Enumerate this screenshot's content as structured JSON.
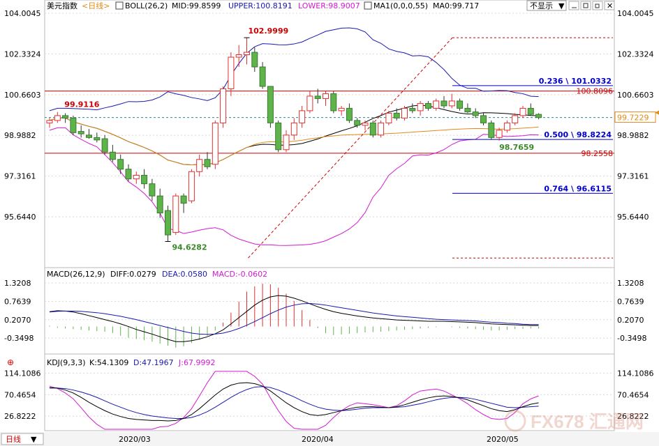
{
  "header": {
    "symbol": "美元指数",
    "period": "<日线>",
    "boll": "BOLL(26,2)",
    "mid": "MID:99.8599",
    "upper": "UPPER:100.8191",
    "lower": "LOWER:98.9007",
    "ma1": "MA1(0,0,0,55)",
    "ma0": "MA0:99.717",
    "hide_label": "不显示"
  },
  "macd_header": {
    "name": "MACD(26,12,9)",
    "diff": "DIFF:0.0279",
    "dea": "DEA:0.0580",
    "macd": "MACD:-0.0602"
  },
  "kdj_header": {
    "name": "KDJ(9,3,3)",
    "k": "K:54.1309",
    "d": "D:47.1967",
    "j": "J:67.9992"
  },
  "footer": {
    "period_tab": "日线",
    "dates": [
      "2020/03",
      "2020/04",
      "2020/05"
    ]
  },
  "watermark": "FX678 汇通网",
  "colors": {
    "up": "#e03030",
    "down": "#5fb34b",
    "upper": "#1818b0",
    "lower": "#d31ad3",
    "ma": "#e08a1a",
    "mid": "#000000",
    "level": "#cc0000",
    "fib": "#0000cc"
  },
  "chart_data": [
    {
      "type": "candlestick",
      "title": "美元指数 日线",
      "y_ticks": [
        "104.0045",
        "102.3324",
        "100.6603",
        "98.9882",
        "97.3161",
        "95.6440"
      ],
      "ylim": [
        93.9,
        104.0045
      ],
      "current_price": "99.7229",
      "annotations": {
        "high": "102.9999",
        "low": "94.6282",
        "start": "99.9116",
        "recent_low": "98.7659"
      },
      "levels": [
        {
          "label": "100.8096",
          "value": 100.81
        },
        {
          "label": "98.2558",
          "value": 98.2558
        }
      ],
      "fib_levels": [
        {
          "label": "0.236 \\ 101.0332",
          "value": 101.03
        },
        {
          "label": "0.500 \\ 98.8224",
          "value": 98.82
        },
        {
          "label": "0.764 \\ 96.6115",
          "value": 96.61
        }
      ],
      "candles": [
        {
          "o": 99.5,
          "h": 99.7,
          "l": 99.3,
          "c": 99.6
        },
        {
          "o": 99.6,
          "h": 99.95,
          "l": 99.5,
          "c": 99.8
        },
        {
          "o": 99.8,
          "h": 99.9,
          "l": 99.5,
          "c": 99.7
        },
        {
          "o": 99.7,
          "h": 99.8,
          "l": 99.0,
          "c": 99.1
        },
        {
          "o": 99.15,
          "h": 99.4,
          "l": 98.9,
          "c": 99.05
        },
        {
          "o": 99.0,
          "h": 99.25,
          "l": 98.85,
          "c": 98.9
        },
        {
          "o": 98.9,
          "h": 99.1,
          "l": 98.7,
          "c": 98.8
        },
        {
          "o": 98.85,
          "h": 99.0,
          "l": 98.2,
          "c": 98.3
        },
        {
          "o": 98.3,
          "h": 98.6,
          "l": 97.9,
          "c": 98.0
        },
        {
          "o": 98.0,
          "h": 98.2,
          "l": 97.4,
          "c": 97.6
        },
        {
          "o": 97.6,
          "h": 97.8,
          "l": 97.1,
          "c": 97.2
        },
        {
          "o": 97.2,
          "h": 97.5,
          "l": 97.0,
          "c": 97.35
        },
        {
          "o": 97.35,
          "h": 97.6,
          "l": 96.8,
          "c": 97.0
        },
        {
          "o": 97.0,
          "h": 97.2,
          "l": 96.3,
          "c": 96.5
        },
        {
          "o": 96.5,
          "h": 96.8,
          "l": 95.6,
          "c": 95.8
        },
        {
          "o": 95.9,
          "h": 96.1,
          "l": 94.63,
          "c": 94.9
        },
        {
          "o": 95.0,
          "h": 96.6,
          "l": 94.9,
          "c": 96.5
        },
        {
          "o": 96.5,
          "h": 96.6,
          "l": 95.8,
          "c": 96.2
        },
        {
          "o": 96.3,
          "h": 97.6,
          "l": 96.2,
          "c": 97.5
        },
        {
          "o": 97.5,
          "h": 98.2,
          "l": 97.3,
          "c": 98.0
        },
        {
          "o": 98.0,
          "h": 98.3,
          "l": 97.6,
          "c": 97.7
        },
        {
          "o": 97.8,
          "h": 99.6,
          "l": 97.6,
          "c": 99.5
        },
        {
          "o": 99.5,
          "h": 101.0,
          "l": 99.3,
          "c": 100.9
        },
        {
          "o": 100.9,
          "h": 102.4,
          "l": 100.6,
          "c": 102.2
        },
        {
          "o": 102.2,
          "h": 102.7,
          "l": 101.8,
          "c": 102.3
        },
        {
          "o": 102.3,
          "h": 103.0,
          "l": 101.9,
          "c": 102.4
        },
        {
          "o": 102.4,
          "h": 102.6,
          "l": 101.6,
          "c": 101.8
        },
        {
          "o": 101.8,
          "h": 102.0,
          "l": 100.9,
          "c": 101.0
        },
        {
          "o": 101.0,
          "h": 101.0,
          "l": 99.3,
          "c": 99.5
        },
        {
          "o": 99.5,
          "h": 99.6,
          "l": 98.3,
          "c": 98.4
        },
        {
          "o": 98.4,
          "h": 99.2,
          "l": 98.3,
          "c": 99.0
        },
        {
          "o": 99.0,
          "h": 99.7,
          "l": 98.8,
          "c": 99.5
        },
        {
          "o": 99.5,
          "h": 100.2,
          "l": 99.3,
          "c": 100.0
        },
        {
          "o": 100.0,
          "h": 100.8,
          "l": 99.9,
          "c": 100.6
        },
        {
          "o": 100.6,
          "h": 100.9,
          "l": 100.3,
          "c": 100.5
        },
        {
          "o": 100.5,
          "h": 100.8,
          "l": 100.2,
          "c": 100.7
        },
        {
          "o": 100.7,
          "h": 100.8,
          "l": 99.9,
          "c": 100.0
        },
        {
          "o": 100.0,
          "h": 100.2,
          "l": 99.8,
          "c": 100.1
        },
        {
          "o": 100.1,
          "h": 100.3,
          "l": 99.5,
          "c": 99.6
        },
        {
          "o": 99.6,
          "h": 99.7,
          "l": 99.3,
          "c": 99.4
        },
        {
          "o": 99.4,
          "h": 99.6,
          "l": 99.2,
          "c": 99.5
        },
        {
          "o": 99.5,
          "h": 99.6,
          "l": 98.9,
          "c": 99.0
        },
        {
          "o": 99.0,
          "h": 99.6,
          "l": 98.9,
          "c": 99.5
        },
        {
          "o": 99.5,
          "h": 100.0,
          "l": 99.4,
          "c": 99.9
        },
        {
          "o": 99.9,
          "h": 100.1,
          "l": 99.6,
          "c": 99.7
        },
        {
          "o": 99.7,
          "h": 100.2,
          "l": 99.6,
          "c": 100.1
        },
        {
          "o": 100.1,
          "h": 100.3,
          "l": 99.9,
          "c": 100.0
        },
        {
          "o": 100.0,
          "h": 100.4,
          "l": 99.8,
          "c": 100.3
        },
        {
          "o": 100.3,
          "h": 100.4,
          "l": 100.0,
          "c": 100.1
        },
        {
          "o": 100.1,
          "h": 100.5,
          "l": 100.0,
          "c": 100.4
        },
        {
          "o": 100.4,
          "h": 100.6,
          "l": 100.1,
          "c": 100.2
        },
        {
          "o": 100.2,
          "h": 100.7,
          "l": 100.1,
          "c": 100.4
        },
        {
          "o": 100.4,
          "h": 100.5,
          "l": 100.0,
          "c": 100.1
        },
        {
          "o": 100.1,
          "h": 100.3,
          "l": 99.9,
          "c": 99.95
        },
        {
          "o": 99.95,
          "h": 100.1,
          "l": 99.7,
          "c": 99.8
        },
        {
          "o": 99.8,
          "h": 99.9,
          "l": 99.4,
          "c": 99.5
        },
        {
          "o": 99.5,
          "h": 99.6,
          "l": 98.8,
          "c": 98.9
        },
        {
          "o": 98.9,
          "h": 99.3,
          "l": 98.77,
          "c": 99.2
        },
        {
          "o": 99.2,
          "h": 99.6,
          "l": 99.1,
          "c": 99.5
        },
        {
          "o": 99.5,
          "h": 99.9,
          "l": 99.4,
          "c": 99.8
        },
        {
          "o": 99.8,
          "h": 100.2,
          "l": 99.7,
          "c": 100.1
        },
        {
          "o": 100.1,
          "h": 100.3,
          "l": 99.8,
          "c": 99.85
        },
        {
          "o": 99.85,
          "h": 99.9,
          "l": 99.65,
          "c": 99.72
        }
      ]
    },
    {
      "type": "bar+line",
      "title": "MACD(26,12,9)",
      "y_ticks": [
        "1.3208",
        "0.7639",
        "0.2070",
        "-0.3498"
      ],
      "ylim": [
        -0.75,
        1.45
      ],
      "hist": [
        0.02,
        -0.04,
        -0.06,
        -0.08,
        -0.1,
        -0.12,
        -0.14,
        -0.16,
        -0.2,
        -0.28,
        -0.34,
        -0.38,
        -0.42,
        -0.46,
        -0.52,
        -0.58,
        -0.64,
        -0.6,
        -0.5,
        -0.4,
        -0.28,
        -0.12,
        0.12,
        0.42,
        0.76,
        1.06,
        1.22,
        1.3,
        1.28,
        1.18,
        1.0,
        0.78,
        0.5,
        0.2,
        -0.05,
        -0.2,
        -0.26,
        -0.24,
        -0.22,
        -0.2,
        -0.18,
        -0.17,
        -0.16,
        -0.14,
        -0.12,
        -0.1,
        -0.08,
        -0.06,
        -0.04,
        -0.02,
        0.0,
        -0.02,
        -0.04,
        -0.06,
        -0.08,
        -0.1,
        -0.12,
        -0.12,
        -0.1,
        -0.08,
        -0.07,
        -0.06,
        -0.06
      ],
      "diff": [
        0.45,
        0.48,
        0.47,
        0.44,
        0.39,
        0.33,
        0.27,
        0.21,
        0.15,
        0.08,
        0.0,
        -0.09,
        -0.16,
        -0.23,
        -0.31,
        -0.39,
        -0.46,
        -0.46,
        -0.43,
        -0.38,
        -0.31,
        -0.22,
        -0.1,
        0.08,
        0.27,
        0.46,
        0.65,
        0.8,
        0.9,
        0.94,
        0.92,
        0.86,
        0.78,
        0.69,
        0.6,
        0.52,
        0.45,
        0.4,
        0.36,
        0.32,
        0.29,
        0.26,
        0.24,
        0.22,
        0.2,
        0.19,
        0.18,
        0.17,
        0.16,
        0.16,
        0.16,
        0.15,
        0.14,
        0.13,
        0.12,
        0.1,
        0.08,
        0.07,
        0.06,
        0.05,
        0.04,
        0.03,
        0.03
      ],
      "dea": [
        0.44,
        0.46,
        0.47,
        0.47,
        0.46,
        0.44,
        0.42,
        0.39,
        0.35,
        0.31,
        0.26,
        0.21,
        0.15,
        0.09,
        0.03,
        -0.03,
        -0.09,
        -0.15,
        -0.2,
        -0.23,
        -0.24,
        -0.23,
        -0.2,
        -0.14,
        -0.06,
        0.04,
        0.15,
        0.27,
        0.39,
        0.5,
        0.59,
        0.65,
        0.69,
        0.7,
        0.68,
        0.65,
        0.61,
        0.57,
        0.53,
        0.49,
        0.45,
        0.41,
        0.38,
        0.35,
        0.32,
        0.3,
        0.28,
        0.26,
        0.24,
        0.22,
        0.21,
        0.2,
        0.19,
        0.18,
        0.17,
        0.15,
        0.13,
        0.12,
        0.1,
        0.09,
        0.07,
        0.06,
        0.06
      ]
    },
    {
      "type": "line",
      "title": "KDJ(9,3,3)",
      "y_ticks": [
        "114.1086",
        "70.4654",
        "26.8222"
      ],
      "ylim": [
        0,
        125
      ],
      "k": [
        85,
        84,
        80,
        74,
        65,
        55,
        46,
        38,
        31,
        26,
        22,
        20,
        19,
        18,
        18,
        17,
        18,
        22,
        30,
        42,
        56,
        70,
        82,
        90,
        94,
        95,
        93,
        88,
        78,
        66,
        54,
        44,
        36,
        30,
        28,
        30,
        34,
        38,
        42,
        45,
        46,
        46,
        45,
        44,
        46,
        50,
        55,
        60,
        64,
        67,
        68,
        67,
        64,
        60,
        54,
        48,
        42,
        38,
        36,
        40,
        46,
        51,
        54
      ],
      "d": [
        84,
        84,
        83,
        80,
        76,
        71,
        65,
        58,
        51,
        45,
        39,
        34,
        30,
        27,
        25,
        23,
        22,
        22,
        24,
        29,
        36,
        45,
        55,
        65,
        74,
        81,
        86,
        87,
        85,
        80,
        73,
        66,
        58,
        51,
        45,
        41,
        39,
        38,
        39,
        41,
        43,
        44,
        44,
        44,
        45,
        46,
        49,
        52,
        56,
        60,
        63,
        65,
        65,
        64,
        61,
        57,
        53,
        49,
        45,
        44,
        45,
        46,
        47
      ],
      "j": [
        88,
        83,
        74,
        62,
        44,
        25,
        10,
        0,
        -5,
        -4,
        -6,
        -8,
        -5,
        -2,
        5,
        6,
        12,
        24,
        42,
        68,
        95,
        118,
        118,
        118,
        118,
        118,
        108,
        92,
        64,
        38,
        16,
        2,
        -6,
        -10,
        -4,
        8,
        24,
        38,
        48,
        54,
        52,
        50,
        47,
        44,
        48,
        58,
        70,
        78,
        80,
        82,
        78,
        70,
        62,
        52,
        40,
        30,
        22,
        20,
        22,
        34,
        52,
        62,
        68
      ]
    }
  ]
}
